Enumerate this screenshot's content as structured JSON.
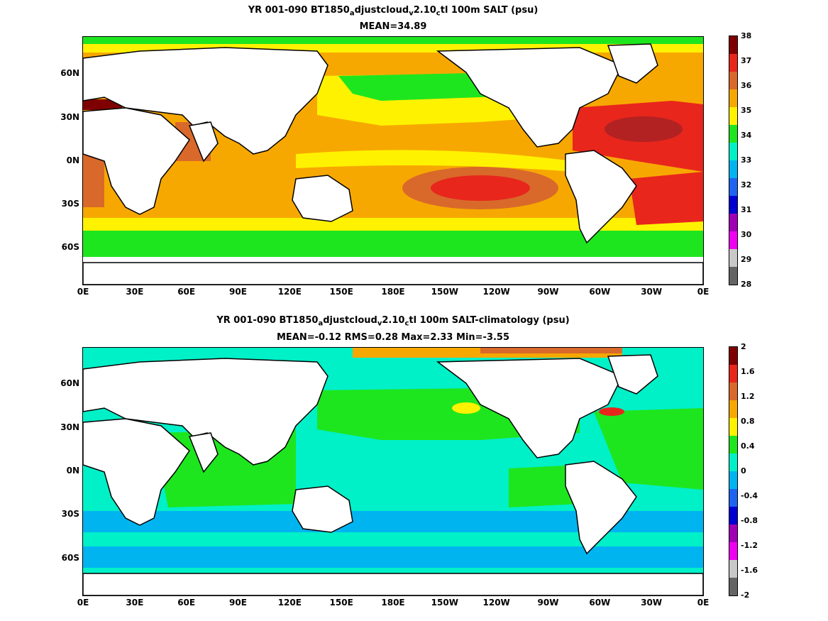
{
  "panels": [
    {
      "title_parts": [
        "YR 001-090 BT1850",
        "a",
        "djustcloud",
        "v",
        "2.10",
        "c",
        "tl 100m SALT (psu)"
      ],
      "subtitle": "MEAN=34.89",
      "colorbar": {
        "labels": [
          "38",
          "37",
          "36",
          "35",
          "34",
          "33",
          "32",
          "31",
          "30",
          "29",
          "28"
        ],
        "colors": [
          "#7f0000",
          "#e8261c",
          "#d9692a",
          "#f7a800",
          "#fff200",
          "#1ee61e",
          "#00f0c8",
          "#00b4f0",
          "#1e64f0",
          "#0000d2",
          "#a000b4",
          "#f000f0",
          "#c8c8c8",
          "#646464"
        ]
      },
      "ocean_base_color": "#f7a800"
    },
    {
      "title_parts": [
        "YR 001-090 BT1850",
        "a",
        "djustcloud",
        "v",
        "2.10",
        "c",
        "tl 100m SALT-climatology (psu)"
      ],
      "subtitle": "MEAN=-0.12   RMS=0.28   Max=2.33   Min=-3.55",
      "colorbar": {
        "labels": [
          "2",
          "1.6",
          "1.2",
          "0.8",
          "0.4",
          "0",
          "-0.4",
          "-0.8",
          "-1.2",
          "-1.6",
          "-2"
        ],
        "colors": [
          "#7f0000",
          "#e8261c",
          "#d9692a",
          "#f7a800",
          "#fff200",
          "#1ee61e",
          "#00f0c8",
          "#00b4f0",
          "#1e64f0",
          "#0000d2",
          "#a000b4",
          "#f000f0",
          "#c8c8c8",
          "#646464"
        ]
      },
      "ocean_base_color": "#00f0c8"
    }
  ],
  "axes": {
    "lat_labels": [
      "60N",
      "30N",
      "0N",
      "30S",
      "60S"
    ],
    "lon_labels": [
      "0E",
      "30E",
      "60E",
      "90E",
      "120E",
      "150E",
      "180E",
      "150W",
      "120W",
      "90W",
      "60W",
      "30W",
      "0E"
    ]
  }
}
